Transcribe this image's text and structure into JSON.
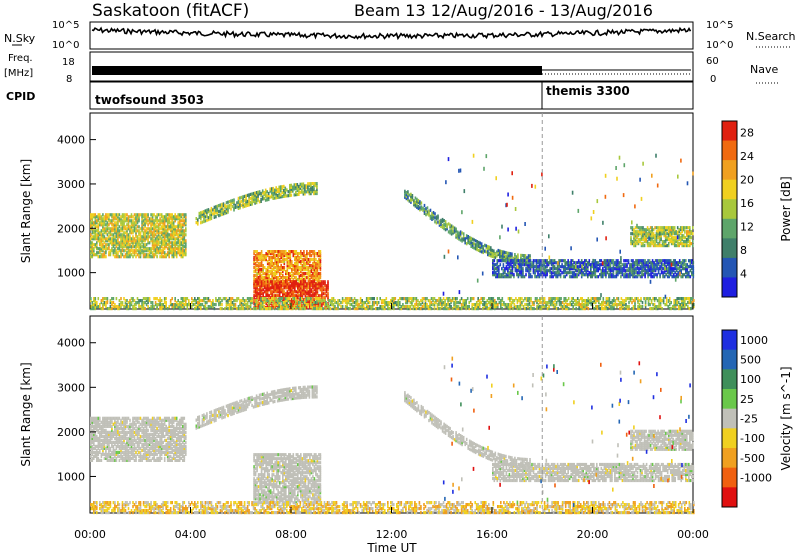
{
  "header": {
    "station": "Saskatoon (fitACF)",
    "beam_date": "Beam 13 12/Aug/2016 - 13/Aug/2016"
  },
  "labels": {
    "n_sky": "N.Sky",
    "n_search": "N.Search",
    "freq": "Freq.",
    "mhz": "[MHz]",
    "nave": "Nave",
    "cpid": "CPID",
    "n_left_hi": "10^5",
    "n_left_lo": "10^0",
    "n_right_hi": "10^5",
    "n_right_lo": "10^0",
    "freq_hi": "18",
    "freq_lo": "8",
    "nave_hi": "60",
    "nave_lo": "0",
    "ylabel": "Slant Range [km]",
    "xlabel": "Time UT",
    "power_label": "Power [dB]",
    "velocity_label": "Velocity [m s^-1]"
  },
  "cpid_segments": [
    {
      "name": "twofsound 3503",
      "start_hour": 0,
      "end_hour": 18
    },
    {
      "name": "themis 3300",
      "start_hour": 18,
      "end_hour": 24
    }
  ],
  "chart_data": [
    {
      "type": "heatmap",
      "name": "power",
      "xlabel": "Time UT",
      "ylabel": "Slant Range [km]",
      "x_ticks": [
        "00:00",
        "04:00",
        "08:00",
        "12:00",
        "16:00",
        "20:00",
        "00:00"
      ],
      "xlim_hours": [
        0,
        24
      ],
      "y_ticks": [
        1000,
        2000,
        3000,
        4000
      ],
      "ylim": [
        180,
        4600
      ],
      "colorbar": {
        "label": "Power [dB]",
        "ticks": [
          4,
          8,
          12,
          16,
          20,
          24,
          28
        ],
        "range": [
          0,
          30
        ]
      },
      "colors": [
        "#1f1fe0",
        "#2456b4",
        "#3f7f6a",
        "#5ea56a",
        "#a8c83c",
        "#f0d020",
        "#f0a020",
        "#f06a10",
        "#e02010"
      ],
      "features": [
        {
          "kind": "band",
          "t": [
            0,
            3.8
          ],
          "r": [
            1350,
            2300
          ],
          "level": 0.55
        },
        {
          "kind": "arc",
          "t": [
            4.2,
            9.0
          ],
          "r_start": 2200,
          "r_end": 2900,
          "width": 250,
          "level": 0.45
        },
        {
          "kind": "box",
          "t": [
            6.5,
            9.2
          ],
          "r": [
            700,
            1500
          ],
          "level": 0.75
        },
        {
          "kind": "box",
          "t": [
            6.5,
            9.5
          ],
          "r": [
            200,
            800
          ],
          "level": 0.95
        },
        {
          "kind": "floor",
          "t": [
            0,
            24
          ],
          "r": [
            180,
            450
          ],
          "level": 0.5
        },
        {
          "kind": "arc",
          "t": [
            12.5,
            17.5
          ],
          "r_start": 2800,
          "r_end": 1300,
          "width": 220,
          "level": 0.35
        },
        {
          "kind": "band",
          "t": [
            16,
            24
          ],
          "r": [
            900,
            1300
          ],
          "level": 0.2
        },
        {
          "kind": "band",
          "t": [
            21.5,
            24
          ],
          "r": [
            1600,
            2050
          ],
          "level": 0.5
        }
      ]
    },
    {
      "type": "heatmap",
      "name": "velocity",
      "xlabel": "Time UT",
      "ylabel": "Slant Range [km]",
      "x_ticks": [
        "00:00",
        "04:00",
        "08:00",
        "12:00",
        "16:00",
        "20:00",
        "00:00"
      ],
      "xlim_hours": [
        0,
        24
      ],
      "y_ticks": [
        1000,
        2000,
        3000,
        4000
      ],
      "ylim": [
        180,
        4600
      ],
      "colorbar": {
        "label": "Velocity [m s^-1]",
        "ticks": [
          1000,
          500,
          100,
          25,
          -25,
          -100,
          -500,
          -1000
        ],
        "range": [
          -1000,
          1000
        ]
      },
      "colors": [
        "#1f2fe0",
        "#2466b4",
        "#3f8f5a",
        "#6ac84a",
        "#c0c0b8",
        "#f0d020",
        "#f0a020",
        "#f06010",
        "#e01010"
      ],
      "features": [
        {
          "kind": "band",
          "t": [
            0,
            3.8
          ],
          "r": [
            1350,
            2300
          ],
          "level": 0.5
        },
        {
          "kind": "arc",
          "t": [
            4.2,
            9.0
          ],
          "r_start": 2200,
          "r_end": 2900,
          "width": 250,
          "level": 0.5
        },
        {
          "kind": "box",
          "t": [
            6.5,
            9.2
          ],
          "r": [
            400,
            1500
          ],
          "level": 0.5
        },
        {
          "kind": "floor",
          "t": [
            0,
            24
          ],
          "r": [
            180,
            450
          ],
          "level": 0.6
        },
        {
          "kind": "arc",
          "t": [
            12.5,
            17.5
          ],
          "r_start": 2800,
          "r_end": 1300,
          "width": 220,
          "level": 0.5
        },
        {
          "kind": "band",
          "t": [
            16,
            24
          ],
          "r": [
            900,
            1300
          ],
          "level": 0.5
        },
        {
          "kind": "band",
          "t": [
            21.5,
            24
          ],
          "r": [
            1600,
            2050
          ],
          "level": 0.5
        }
      ]
    }
  ]
}
